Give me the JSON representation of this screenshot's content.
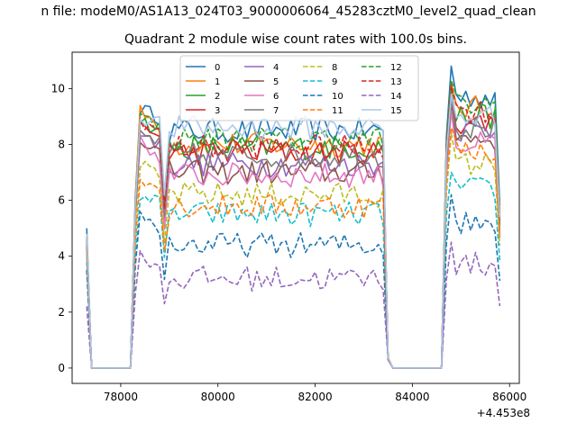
{
  "chart_data": {
    "type": "line",
    "suptitle": "n file: modeM0/AS1A13_024T03_9000006064_45283cztM0_level2_quad_clean",
    "title": "Quadrant 2 module wise count rates with 100.0s bins.",
    "xlabel": "",
    "ylabel": "",
    "x_offset_label": "+4.453e8",
    "x_offset": 445300000,
    "xlim": [
      77000,
      86200
    ],
    "ylim": [
      -0.55,
      11.3
    ],
    "xticks": [
      78000,
      80000,
      82000,
      84000,
      86000
    ],
    "xtick_labels": [
      "78000",
      "80000",
      "82000",
      "84000",
      "86000"
    ],
    "yticks": [
      0,
      2,
      4,
      6,
      8,
      10
    ],
    "ytick_labels": [
      "0",
      "2",
      "4",
      "6",
      "8",
      "10"
    ],
    "grid": false,
    "legend_position": "top-center",
    "legend_ncol": 4,
    "segments": [
      {
        "x_start": 77300,
        "x_end": 77400,
        "kind": "drop"
      },
      {
        "x_start": 77400,
        "x_end": 78200,
        "kind": "zero"
      },
      {
        "x_start": 78200,
        "x_end": 78300,
        "kind": "rise"
      },
      {
        "x_start": 78300,
        "x_end": 83400,
        "kind": "plateau"
      },
      {
        "x_start": 83400,
        "x_end": 83500,
        "kind": "drop"
      },
      {
        "x_start": 83500,
        "x_end": 84600,
        "kind": "zero"
      },
      {
        "x_start": 84600,
        "x_end": 85800,
        "kind": "plateau"
      }
    ],
    "series": [
      {
        "name": "0",
        "color": "#1f77b4",
        "dash": "solid",
        "start": 5.0,
        "plateau1": 8.5,
        "peak1": 9.4,
        "plateau2": 9.7,
        "peak2": 10.8
      },
      {
        "name": "1",
        "color": "#ff7f0e",
        "dash": "solid",
        "start": 4.8,
        "plateau1": 8.0,
        "peak1": 9.3,
        "plateau2": 9.3,
        "peak2": 10.2
      },
      {
        "name": "2",
        "color": "#2ca02c",
        "dash": "solid",
        "start": 4.7,
        "plateau1": 7.9,
        "peak1": 9.0,
        "plateau2": 9.0,
        "peak2": 10.0
      },
      {
        "name": "3",
        "color": "#d62728",
        "dash": "solid",
        "start": 4.6,
        "plateau1": 7.7,
        "peak1": 8.8,
        "plateau2": 8.8,
        "peak2": 9.8
      },
      {
        "name": "4",
        "color": "#9467bd",
        "dash": "solid",
        "start": 4.5,
        "plateau1": 7.3,
        "peak1": 8.6,
        "plateau2": 8.5,
        "peak2": 9.6
      },
      {
        "name": "5",
        "color": "#8c564b",
        "dash": "solid",
        "start": 4.4,
        "plateau1": 7.0,
        "peak1": 8.4,
        "plateau2": 8.2,
        "peak2": 9.4
      },
      {
        "name": "6",
        "color": "#e377c2",
        "dash": "solid",
        "start": 4.3,
        "plateau1": 6.9,
        "peak1": 8.2,
        "plateau2": 8.0,
        "peak2": 9.2
      },
      {
        "name": "7",
        "color": "#7f7f7f",
        "dash": "solid",
        "start": 4.3,
        "plateau1": 7.6,
        "peak1": 8.5,
        "plateau2": 8.6,
        "peak2": 9.5
      },
      {
        "name": "8",
        "color": "#bcbd22",
        "dash": "dashed",
        "start": 4.0,
        "plateau1": 6.2,
        "peak1": 7.4,
        "plateau2": 7.3,
        "peak2": 8.4
      },
      {
        "name": "9",
        "color": "#17becf",
        "dash": "dashed",
        "start": 3.8,
        "plateau1": 5.5,
        "peak1": 6.3,
        "plateau2": 6.4,
        "peak2": 7.0
      },
      {
        "name": "10",
        "color": "#1f77b4",
        "dash": "dashed",
        "start": 3.5,
        "plateau1": 4.4,
        "peak1": 5.6,
        "plateau2": 5.2,
        "peak2": 6.2
      },
      {
        "name": "11",
        "color": "#ff7f0e",
        "dash": "dashed",
        "start": 4.2,
        "plateau1": 5.8,
        "peak1": 7.0,
        "plateau2": 7.8,
        "peak2": 8.6
      },
      {
        "name": "12",
        "color": "#2ca02c",
        "dash": "dashed",
        "start": 4.6,
        "plateau1": 8.2,
        "peak1": 9.1,
        "plateau2": 9.4,
        "peak2": 10.3
      },
      {
        "name": "13",
        "color": "#d62728",
        "dash": "dashed",
        "start": 4.7,
        "plateau1": 7.9,
        "peak1": 9.0,
        "plateau2": 9.2,
        "peak2": 10.1
      },
      {
        "name": "14",
        "color": "#9467bd",
        "dash": "dashed",
        "start": 2.2,
        "plateau1": 3.2,
        "peak1": 4.1,
        "plateau2": 3.7,
        "peak2": 4.5
      },
      {
        "name": "15",
        "color": "#aec7e8",
        "dash": "solid",
        "start": 4.8,
        "plateau1": 8.6,
        "peak1": 9.0,
        "plateau2": 9.0,
        "peak2": 9.8
      }
    ]
  }
}
